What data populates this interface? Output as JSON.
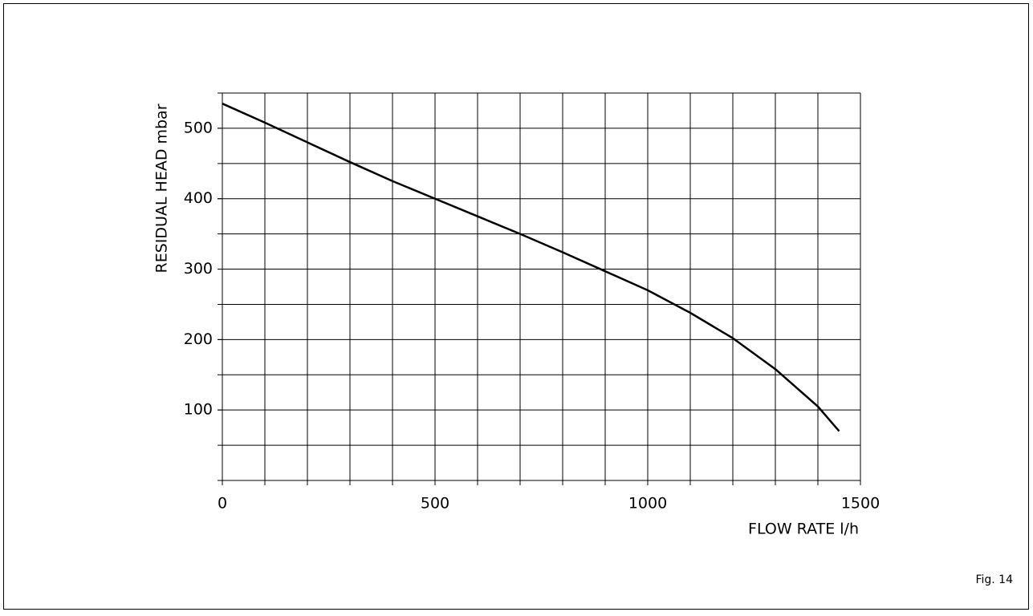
{
  "chart_data": {
    "type": "line",
    "x_label": "FLOW RATE l/h",
    "y_label": "RESIDUAL HEAD mbar",
    "annotation": "Fig. 14",
    "x": [
      0,
      100,
      200,
      300,
      400,
      500,
      600,
      700,
      800,
      900,
      1000,
      1100,
      1200,
      1300,
      1400,
      1450
    ],
    "series": [
      {
        "name": "RESIDUAL HEAD",
        "color": "#000000",
        "values": [
          535,
          508,
          480,
          452,
          425,
          400,
          375,
          350,
          324,
          297,
          270,
          238,
          202,
          158,
          105,
          70
        ]
      }
    ],
    "xlim": [
      0,
      1500
    ],
    "xticks": [
      0,
      500,
      1000,
      1500
    ],
    "ylim": [
      0,
      550
    ],
    "yticks": [
      100,
      200,
      300,
      400,
      500
    ],
    "grid": true,
    "xgrid_step": 100,
    "ygrid_step": 50
  }
}
